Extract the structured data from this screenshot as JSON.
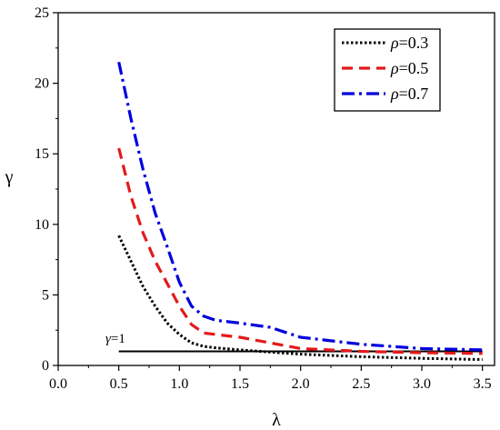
{
  "chart_data": {
    "type": "line",
    "xlabel": "λ",
    "ylabel": "γ",
    "xlim": [
      0.0,
      3.6
    ],
    "ylim": [
      0,
      25
    ],
    "xticks": [
      "0.0",
      "0.5",
      "1.0",
      "1.5",
      "2.0",
      "2.5",
      "3.0",
      "3.5"
    ],
    "yticks": [
      "0",
      "5",
      "10",
      "15",
      "20",
      "25"
    ],
    "legend_position": "top-right",
    "series": [
      {
        "name": "ρ=0.3",
        "legend_symbol": "ρ",
        "legend_value": "=0.3",
        "color": "#000000",
        "style": "dotted",
        "x": [
          0.5,
          0.6,
          0.7,
          0.8,
          0.9,
          1.0,
          1.1,
          1.2,
          1.3,
          1.5,
          1.75,
          2.0,
          2.5,
          3.0,
          3.5
        ],
        "y": [
          9.2,
          7.4,
          5.6,
          4.2,
          3.0,
          2.2,
          1.6,
          1.35,
          1.25,
          1.1,
          0.95,
          0.8,
          0.62,
          0.5,
          0.42
        ]
      },
      {
        "name": "ρ=0.5",
        "legend_symbol": "ρ",
        "legend_value": "=0.5",
        "color": "#e31a1c",
        "style": "dashed",
        "x": [
          0.5,
          0.6,
          0.7,
          0.8,
          0.9,
          1.0,
          1.1,
          1.2,
          1.3,
          1.5,
          1.75,
          2.0,
          2.5,
          3.0,
          3.5
        ],
        "y": [
          15.4,
          12.0,
          9.4,
          7.4,
          5.8,
          4.2,
          2.9,
          2.3,
          2.2,
          2.0,
          1.6,
          1.2,
          1.0,
          0.9,
          0.85
        ]
      },
      {
        "name": "ρ=0.7",
        "legend_symbol": "ρ",
        "legend_value": "=0.7",
        "color": "#0000dd",
        "style": "dash-dot",
        "x": [
          0.5,
          0.6,
          0.7,
          0.8,
          0.9,
          1.0,
          1.1,
          1.2,
          1.3,
          1.5,
          1.75,
          2.0,
          2.5,
          3.0,
          3.5
        ],
        "y": [
          21.5,
          17.5,
          13.9,
          10.8,
          8.4,
          5.9,
          4.2,
          3.5,
          3.2,
          3.0,
          2.7,
          2.0,
          1.5,
          1.2,
          1.1
        ]
      }
    ],
    "reference_line": {
      "label_symbol": "γ",
      "label_value": "=1",
      "y": 1,
      "x": [
        0.5,
        3.5
      ],
      "color": "#000000"
    }
  }
}
